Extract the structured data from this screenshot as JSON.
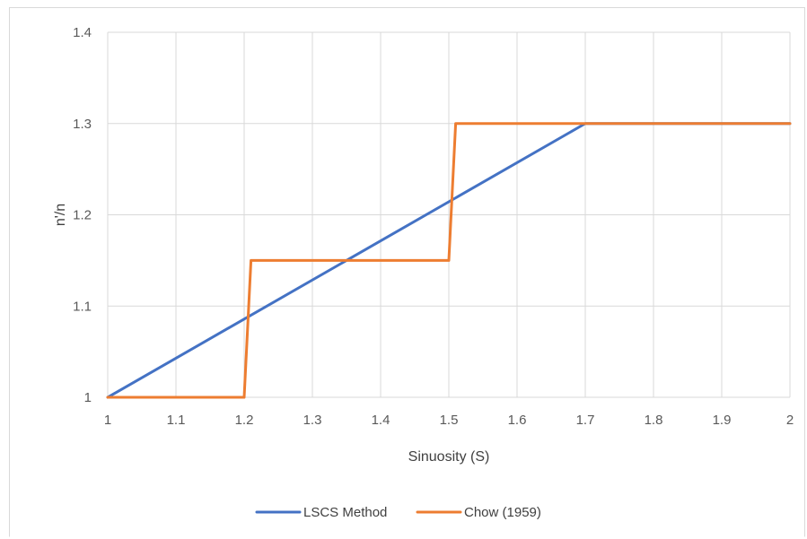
{
  "chart_data": {
    "type": "line",
    "title": "",
    "xlabel": "Sinuosity (S)",
    "ylabel": "n'/n",
    "xlim": [
      1,
      2
    ],
    "ylim": [
      1,
      1.4
    ],
    "x_ticks": [
      "1",
      "1.1",
      "1.2",
      "1.3",
      "1.4",
      "1.5",
      "1.6",
      "1.7",
      "1.8",
      "1.9",
      "2"
    ],
    "y_ticks": [
      "1",
      "1.1",
      "1.2",
      "1.3",
      "1.4"
    ],
    "grid": true,
    "legend_position": "bottom",
    "series": [
      {
        "name": "LSCS Method",
        "color": "#4472C4",
        "x": [
          1,
          1.7,
          2
        ],
        "y": [
          1,
          1.3,
          1.3
        ]
      },
      {
        "name": "Chow (1959)",
        "color": "#ED7D31",
        "x": [
          1,
          1.2,
          1.21,
          1.5,
          1.51,
          2
        ],
        "y": [
          1,
          1,
          1.15,
          1.15,
          1.3,
          1.3
        ]
      }
    ]
  }
}
